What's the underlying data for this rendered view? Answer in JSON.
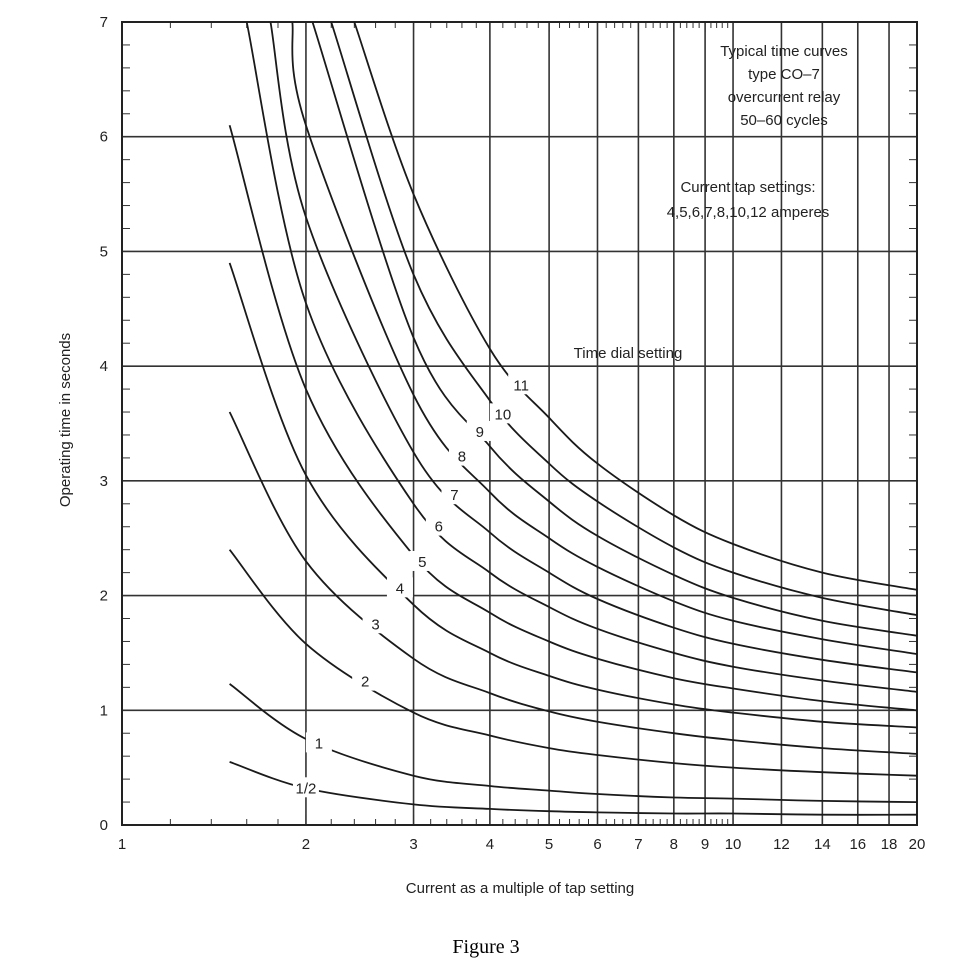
{
  "chart_data": {
    "type": "line",
    "xscale": "log",
    "xlim": [
      1,
      20
    ],
    "ylim": [
      0,
      7
    ],
    "grid": true,
    "xlabel": "Current as a multiple of tap setting",
    "ylabel": "Operating time in seconds",
    "x_ticks": [
      {
        "v": 1,
        "label": "1"
      },
      {
        "v": 2,
        "label": "2"
      },
      {
        "v": 3,
        "label": "3"
      },
      {
        "v": 4,
        "label": "4"
      },
      {
        "v": 5,
        "label": "5"
      },
      {
        "v": 6,
        "label": "6"
      },
      {
        "v": 7,
        "label": "7"
      },
      {
        "v": 8,
        "label": "8"
      },
      {
        "v": 9,
        "label": "9"
      },
      {
        "v": 10,
        "label": "10"
      },
      {
        "v": 12,
        "label": "12"
      },
      {
        "v": 14,
        "label": "14"
      },
      {
        "v": 16,
        "label": "16"
      },
      {
        "v": 18,
        "label": "18"
      },
      {
        "v": 20,
        "label": "20"
      }
    ],
    "y_ticks": [
      {
        "v": 0,
        "label": "0"
      },
      {
        "v": 1,
        "label": "1"
      },
      {
        "v": 2,
        "label": "2"
      },
      {
        "v": 3,
        "label": "3"
      },
      {
        "v": 4,
        "label": "4"
      },
      {
        "v": 5,
        "label": "5"
      },
      {
        "v": 6,
        "label": "6"
      },
      {
        "v": 7,
        "label": "7"
      }
    ],
    "notes": {
      "typical_lines": [
        "Typical time curves",
        "type CO–7",
        "overcurrent relay",
        "50–60 cycles"
      ],
      "tap_lines": [
        "Current tap settings:",
        "4,5,6,7,8,10,12 amperes"
      ],
      "dial_title": "Time dial setting"
    },
    "series": [
      {
        "name": "1/2",
        "label_at": 2.0,
        "x": [
          1.5,
          2,
          3,
          4,
          5,
          6,
          8,
          10,
          14,
          20
        ],
        "y": [
          0.55,
          0.32,
          0.18,
          0.14,
          0.12,
          0.11,
          0.1,
          0.1,
          0.09,
          0.09
        ]
      },
      {
        "name": "1",
        "label_at": 2.1,
        "x": [
          1.5,
          2,
          3,
          4,
          5,
          6,
          8,
          10,
          14,
          20
        ],
        "y": [
          1.23,
          0.75,
          0.43,
          0.34,
          0.3,
          0.27,
          0.24,
          0.23,
          0.21,
          0.2
        ]
      },
      {
        "name": "2",
        "label_at": 2.5,
        "x": [
          1.5,
          2,
          3,
          4,
          5,
          6,
          8,
          10,
          14,
          20
        ],
        "y": [
          2.4,
          1.58,
          0.98,
          0.78,
          0.67,
          0.61,
          0.54,
          0.5,
          0.46,
          0.43
        ]
      },
      {
        "name": "3",
        "label_at": 2.6,
        "x": [
          1.5,
          2,
          3,
          4,
          5,
          6,
          8,
          10,
          14,
          20
        ],
        "y": [
          3.6,
          2.3,
          1.45,
          1.15,
          0.99,
          0.9,
          0.8,
          0.74,
          0.67,
          0.62
        ]
      },
      {
        "name": "4",
        "label_at": 2.85,
        "x": [
          1.5,
          2,
          3,
          4,
          5,
          6,
          8,
          10,
          14,
          20
        ],
        "y": [
          4.9,
          3.05,
          1.92,
          1.5,
          1.3,
          1.18,
          1.05,
          0.98,
          0.9,
          0.85
        ]
      },
      {
        "name": "5",
        "label_at": 3.1,
        "x": [
          1.5,
          2,
          3,
          4,
          5,
          6,
          8,
          10,
          14,
          20
        ],
        "y": [
          6.1,
          3.8,
          2.35,
          1.85,
          1.6,
          1.45,
          1.28,
          1.19,
          1.08,
          1.0
        ]
      },
      {
        "name": "6",
        "label_at": 3.3,
        "x": [
          1.6,
          2,
          3,
          4,
          5,
          6,
          8,
          10,
          14,
          20
        ],
        "y": [
          7.0,
          4.55,
          2.8,
          2.2,
          1.9,
          1.71,
          1.5,
          1.38,
          1.26,
          1.16
        ]
      },
      {
        "name": "7",
        "label_at": 3.5,
        "x": [
          1.75,
          2,
          3,
          4,
          5,
          6,
          8,
          10,
          14,
          20
        ],
        "y": [
          7.0,
          5.3,
          3.25,
          2.55,
          2.2,
          1.97,
          1.72,
          1.58,
          1.44,
          1.33
        ]
      },
      {
        "name": "8",
        "label_at": 3.6,
        "x": [
          1.9,
          2,
          3,
          4,
          5,
          6,
          8,
          10,
          14,
          20
        ],
        "y": [
          7.0,
          6.1,
          3.75,
          2.9,
          2.5,
          2.25,
          1.95,
          1.78,
          1.62,
          1.49
        ]
      },
      {
        "name": "9",
        "label_at": 3.85,
        "x": [
          2.05,
          3,
          4,
          5,
          6,
          8,
          10,
          14,
          20
        ],
        "y": [
          7.0,
          4.25,
          3.3,
          2.82,
          2.52,
          2.18,
          1.98,
          1.78,
          1.65
        ]
      },
      {
        "name": "10",
        "label_at": 4.2,
        "x": [
          2.2,
          3,
          4,
          5,
          6,
          8,
          10,
          14,
          20
        ],
        "y": [
          7.0,
          4.8,
          3.7,
          3.15,
          2.82,
          2.42,
          2.2,
          1.98,
          1.83
        ]
      },
      {
        "name": "11",
        "label_at": 4.5,
        "x": [
          2.4,
          3,
          4,
          5,
          6,
          8,
          10,
          14,
          20
        ],
        "y": [
          7.0,
          5.5,
          4.15,
          3.55,
          3.15,
          2.7,
          2.45,
          2.2,
          2.05
        ]
      }
    ]
  },
  "figure_caption": "Figure 3"
}
